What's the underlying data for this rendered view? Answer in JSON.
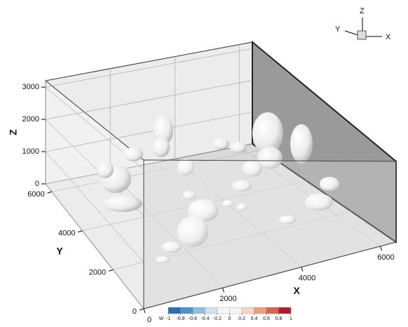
{
  "chart_data": {
    "type": "3d-isosurface",
    "xlabel": "X",
    "ylabel": "Y",
    "zlabel": "Z",
    "xlim": [
      0,
      6400
    ],
    "ylim": [
      0,
      6400
    ],
    "zlim": [
      0,
      3200
    ],
    "xticks": [
      0,
      2000,
      4000,
      6000
    ],
    "yticks": [
      0,
      2000,
      4000,
      6000
    ],
    "zticks": [
      0,
      1000,
      2000,
      3000
    ],
    "triad": [
      "Z",
      "Y",
      "X"
    ],
    "colorbar": {
      "label": "W",
      "ticks": [
        -1,
        -0.8,
        -0.6,
        -0.4,
        -0.2,
        0,
        0.2,
        0.4,
        0.6,
        0.8,
        1
      ],
      "colors": [
        "#2c6fb0",
        "#4f93c6",
        "#8fbfdc",
        "#cfe3ef",
        "#f4f6f8",
        "#f8f4f2",
        "#f6d3c2",
        "#eb9f82",
        "#d4634f",
        "#b01c2e"
      ]
    }
  }
}
